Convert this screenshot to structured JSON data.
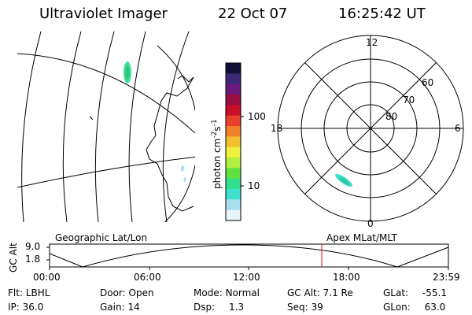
{
  "header": {
    "title": "Ultraviolet Imager",
    "date": "22 Oct 07",
    "time": "16:25:42 UT"
  },
  "map": {
    "label": "Geographic Lat/Lon"
  },
  "colorbar": {
    "unit": "photon cm",
    "unit_sup": "-2",
    "unit_s": "s",
    "unit_sup2": "-1",
    "ticks": [
      "100",
      "10"
    ],
    "colors": [
      "#101038",
      "#3c2a78",
      "#6a1a7a",
      "#9a1040",
      "#c8102a",
      "#e8402a",
      "#f0802a",
      "#f0c030",
      "#f0f040",
      "#b0f040",
      "#60e040",
      "#30e090",
      "#40e0d0",
      "#a8e0f0",
      "#e8f4f8"
    ]
  },
  "polar": {
    "label": "Apex MLat/MLT",
    "hours": [
      "12",
      "18",
      "6",
      "0"
    ],
    "lats": [
      "60",
      "70",
      "80"
    ]
  },
  "altitude_plot": {
    "ylabel": "GC Alt",
    "yticks": [
      "9.0",
      "1.8"
    ],
    "xticks": [
      "00:00",
      "06:00",
      "12:00",
      "18:00",
      "23:59"
    ],
    "current_time_marker_color": "#e01010"
  },
  "info": {
    "flt_label": "Flt:",
    "flt": "LBHL",
    "door_label": "Door:",
    "door": "Open",
    "mode_label": "Mode:",
    "mode": "Normal",
    "gcalt_label": "GC Alt:",
    "gcalt": "7.1 Re",
    "glat_label": "GLat:",
    "glat": "-55.1",
    "ip_label": "IP:",
    "ip": "36.0",
    "gain_label": "Gain:",
    "gain": "14",
    "dsp_label": "Dsp:",
    "dsp": "1.3",
    "seq_label": "Seq:",
    "seq": "39",
    "glon_label": "GLon:",
    "glon": "63.0"
  }
}
